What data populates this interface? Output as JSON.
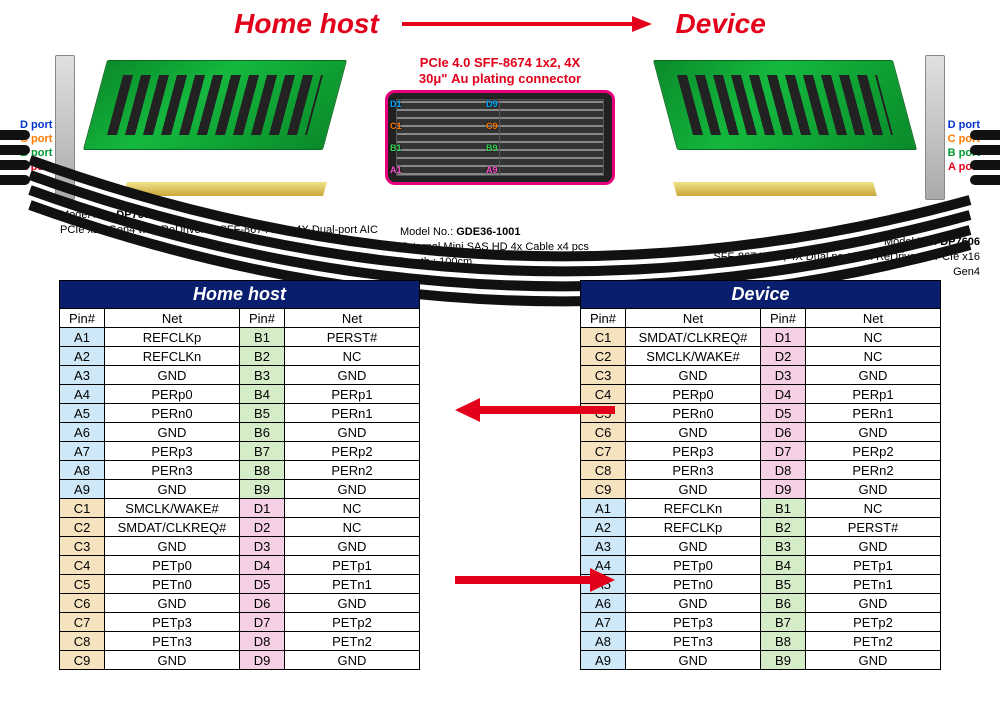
{
  "header": {
    "left": "Home host",
    "right": "Device",
    "arrow_color": "#e2001a"
  },
  "connector": {
    "line1": "PCIe 4.0 SFF-8674 1x2, 4X",
    "line2": "30μ\" Au plating connector",
    "border_color": "#e6007e",
    "row_labels": [
      {
        "t": "D1",
        "c": "#00aaff"
      },
      {
        "t": "D9",
        "c": "#00aaff"
      },
      {
        "t": "C1",
        "c": "#ff7a00"
      },
      {
        "t": "C9",
        "c": "#ff7a00"
      },
      {
        "t": "B1",
        "c": "#39d353"
      },
      {
        "t": "B9",
        "c": "#39d353"
      },
      {
        "t": "A1",
        "c": "#ff4fcf"
      },
      {
        "t": "A9",
        "c": "#ff4fcf"
      }
    ]
  },
  "port_labels": [
    {
      "text": "D port",
      "color": "#0033cc"
    },
    {
      "text": "C port",
      "color": "#ff7a00"
    },
    {
      "text": "B port",
      "color": "#009933"
    },
    {
      "text": "A port",
      "color": "#e2001a"
    }
  ],
  "models": {
    "left": {
      "prefix": "Model No.: ",
      "no": "DP7604",
      "desc": "PCIe x16 Gen4 with ReDriver to SFF-8674 1x2, 4X Dual-port AIC"
    },
    "mid": {
      "prefix": "Model No.: ",
      "no": "GDE36-1001",
      "desc1": "External Mini SAS HD 4x Cable x4 pcs",
      "desc2": "length : 100cm"
    },
    "right": {
      "prefix": "Model No.: ",
      "no": "DP7606",
      "desc": "SFF-8674 1x2, 4X Dual port with ReDriver to PCIe x16 Gen4"
    }
  },
  "colors": {
    "blue": "#cfe8f7",
    "green": "#d5ecc9",
    "beige": "#f5e3c0",
    "pink": "#f5cfe4",
    "header_bg": "#0a1e6e",
    "arrow": "#e2001a"
  },
  "tables": {
    "home": {
      "title": "Home host",
      "headers": [
        "Pin#",
        "Net",
        "Pin#",
        "Net"
      ],
      "col1_color_top": "blue",
      "col3_color_top": "green",
      "col1_color_bot": "beige",
      "col3_color_bot": "pink",
      "rows": [
        [
          "A1",
          "REFCLKp",
          "B1",
          "PERST#"
        ],
        [
          "A2",
          "REFCLKn",
          "B2",
          "NC"
        ],
        [
          "A3",
          "GND",
          "B3",
          "GND"
        ],
        [
          "A4",
          "PERp0",
          "B4",
          "PERp1"
        ],
        [
          "A5",
          "PERn0",
          "B5",
          "PERn1"
        ],
        [
          "A6",
          "GND",
          "B6",
          "GND"
        ],
        [
          "A7",
          "PERp3",
          "B7",
          "PERp2"
        ],
        [
          "A8",
          "PERn3",
          "B8",
          "PERn2"
        ],
        [
          "A9",
          "GND",
          "B9",
          "GND"
        ],
        [
          "C1",
          "SMCLK/WAKE#",
          "D1",
          "NC"
        ],
        [
          "C2",
          "SMDAT/CLKREQ#",
          "D2",
          "NC"
        ],
        [
          "C3",
          "GND",
          "D3",
          "GND"
        ],
        [
          "C4",
          "PETp0",
          "D4",
          "PETp1"
        ],
        [
          "C5",
          "PETn0",
          "D5",
          "PETn1"
        ],
        [
          "C6",
          "GND",
          "D6",
          "GND"
        ],
        [
          "C7",
          "PETp3",
          "D7",
          "PETp2"
        ],
        [
          "C8",
          "PETn3",
          "D8",
          "PETn2"
        ],
        [
          "C9",
          "GND",
          "D9",
          "GND"
        ]
      ]
    },
    "device": {
      "title": "Device",
      "headers": [
        "Pin#",
        "Net",
        "Pin#",
        "Net"
      ],
      "col1_color_top": "beige",
      "col3_color_top": "pink",
      "col1_color_bot": "blue",
      "col3_color_bot": "green",
      "rows": [
        [
          "C1",
          "SMDAT/CLKREQ#",
          "D1",
          "NC"
        ],
        [
          "C2",
          "SMCLK/WAKE#",
          "D2",
          "NC"
        ],
        [
          "C3",
          "GND",
          "D3",
          "GND"
        ],
        [
          "C4",
          "PERp0",
          "D4",
          "PERp1"
        ],
        [
          "C5",
          "PERn0",
          "D5",
          "PERn1"
        ],
        [
          "C6",
          "GND",
          "D6",
          "GND"
        ],
        [
          "C7",
          "PERp3",
          "D7",
          "PERp2"
        ],
        [
          "C8",
          "PERn3",
          "D8",
          "PERn2"
        ],
        [
          "C9",
          "GND",
          "D9",
          "GND"
        ],
        [
          "A1",
          "REFCLKn",
          "B1",
          "NC"
        ],
        [
          "A2",
          "REFCLKp",
          "B2",
          "PERST#"
        ],
        [
          "A3",
          "GND",
          "B3",
          "GND"
        ],
        [
          "A4",
          "PETp0",
          "B4",
          "PETp1"
        ],
        [
          "A5",
          "PETn0",
          "B5",
          "PETn1"
        ],
        [
          "A6",
          "GND",
          "B6",
          "GND"
        ],
        [
          "A7",
          "PETp3",
          "B7",
          "PETp2"
        ],
        [
          "A8",
          "PETn3",
          "B8",
          "PETn2"
        ],
        [
          "A9",
          "GND",
          "B9",
          "GND"
        ]
      ]
    }
  }
}
